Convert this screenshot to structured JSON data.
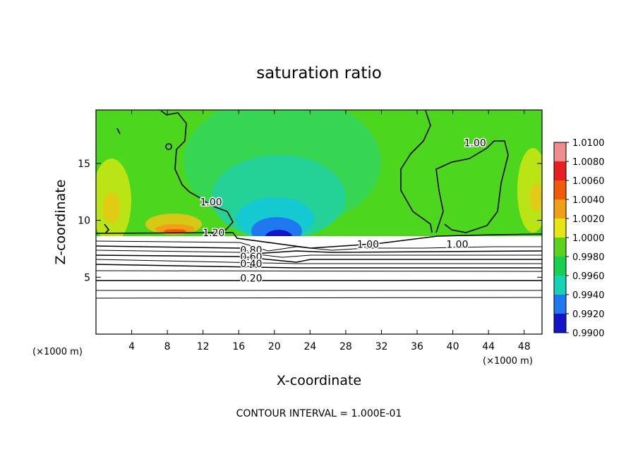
{
  "chart_data": {
    "type": "heatmap",
    "title": "saturation ratio",
    "xlabel": "X-coordinate",
    "ylabel": "Z-coordinate",
    "x_unit_label": "(×1000 m)",
    "x_ticks": [
      4,
      8,
      12,
      16,
      20,
      24,
      28,
      32,
      36,
      40,
      44,
      48
    ],
    "y_ticks": [
      5,
      10,
      15
    ],
    "xlim": [
      0,
      50
    ],
    "ylim": [
      0,
      19.7
    ],
    "colorbar": {
      "levels": [
        "1.0100",
        "1.0080",
        "1.0060",
        "1.0040",
        "1.0020",
        "1.0000",
        "0.9980",
        "0.9960",
        "0.9940",
        "0.9920",
        "0.9900"
      ],
      "colors": [
        "#f08c8c",
        "#e81e1e",
        "#f05a0a",
        "#f0a014",
        "#e6e614",
        "#5ad21e",
        "#14d250",
        "#14d2b4",
        "#1e78f0",
        "#1414c8",
        "#6e14a0"
      ]
    },
    "contour_labels": [
      {
        "text": "1.00",
        "x": 12.9,
        "y": 11.3
      },
      {
        "text": "1.00",
        "x": 42.5,
        "y": 16.5
      },
      {
        "text": "1.20",
        "x": 13.2,
        "y": 8.6
      },
      {
        "text": "0.80",
        "x": 17.4,
        "y": 7.1
      },
      {
        "text": "0.60",
        "x": 17.4,
        "y": 6.5
      },
      {
        "text": "0.40",
        "x": 17.4,
        "y": 5.9
      },
      {
        "text": "0.20",
        "x": 17.4,
        "y": 4.6
      },
      {
        "text": "1.00",
        "x": 30.5,
        "y": 7.6
      },
      {
        "text": "1.00",
        "x": 40.5,
        "y": 7.6
      }
    ],
    "contour_interval_text": "CONTOUR INTERVAL = 1.000E-01"
  }
}
